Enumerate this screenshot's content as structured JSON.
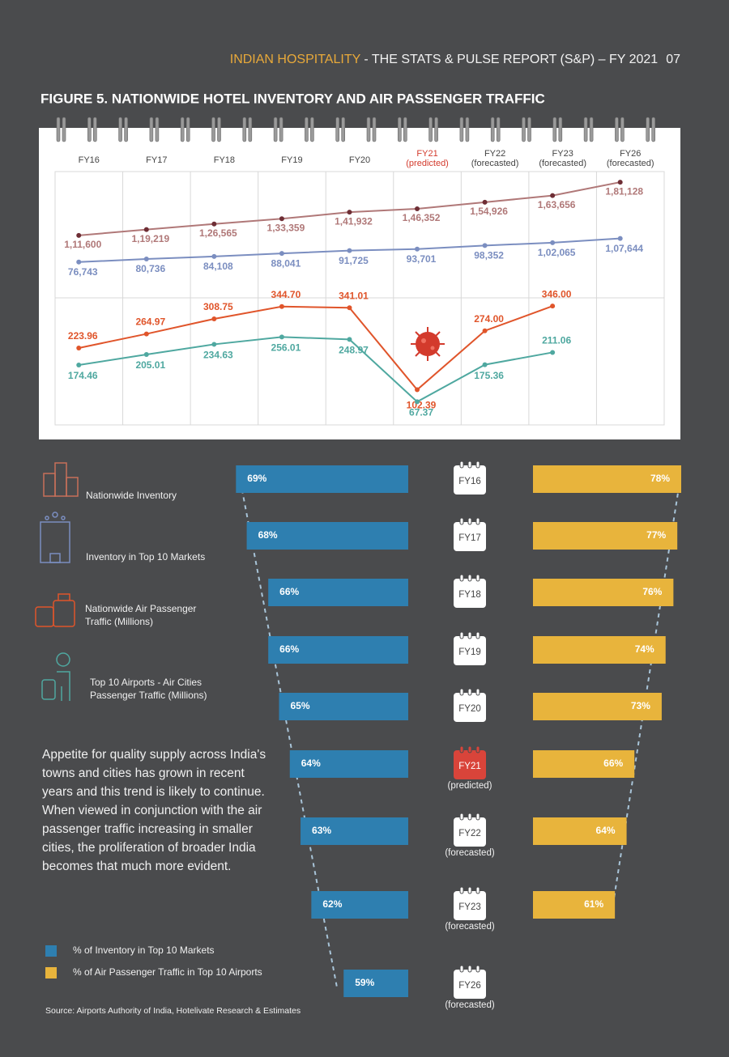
{
  "header": {
    "brand": "INDIAN HOSPITALITY",
    "report": " - THE STATS & PULSE REPORT (S&P) – FY 2021",
    "page": "07"
  },
  "figure_title": "FIGURE 5. NATIONWIDE HOTEL INVENTORY AND AIR PASSENGER TRAFFIC",
  "paragraph": "Appetite for quality supply across India's towns and cities has grown in recent years and this trend is likely to continue. When viewed in conjunction with the air passenger traffic increasing in smaller cities, the proliferation of broader India becomes that much more evident.",
  "source": "Source: Airports Authority of India, Hotelivate Research & Estimates",
  "chart_data": [
    {
      "type": "line",
      "categories": [
        "FY16",
        "FY17",
        "FY18",
        "FY19",
        "FY20",
        "FY21",
        "FY22",
        "FY23",
        "FY26"
      ],
      "category_notes": [
        null,
        null,
        null,
        null,
        null,
        "(predicted)",
        "(forecasted)",
        "(forecasted)",
        "(forecasted)"
      ],
      "ylim": [
        30000,
        195000
      ],
      "y2lim": [
        0,
        370
      ],
      "grid": true,
      "series": [
        {
          "name": "Nationwide Inventory",
          "color": "#b07878",
          "values": [
            111600,
            119219,
            126565,
            133359,
            141932,
            146352,
            154926,
            163656,
            181128
          ],
          "value_labels": [
            "1,11,600",
            "1,19,219",
            "1,26,565",
            "1,33,359",
            "1,41,932",
            "1,46,352",
            "1,54,926",
            "1,63,656",
            "1,81,128"
          ]
        },
        {
          "name": "Inventory in Top 10 Markets",
          "color": "#7b8ec0",
          "values": [
            76743,
            80736,
            84108,
            88041,
            91725,
            93701,
            98352,
            102065,
            107644
          ],
          "value_labels": [
            "76,743",
            "80,736",
            "84,108",
            "88,041",
            "91,725",
            "93,701",
            "98,352",
            "1,02,065",
            "1,07,644"
          ]
        },
        {
          "name": "Nationwide Air Passenger Traffic (Millions)",
          "color": "#e0552b",
          "axis": "y2",
          "values": [
            223.96,
            264.97,
            308.75,
            344.7,
            341.01,
            102.39,
            274.0,
            346.0,
            null
          ],
          "value_labels": [
            "223.96",
            "264.97",
            "308.75",
            "344.70",
            "341.01",
            "102.39",
            "274.00",
            "346.00",
            null
          ]
        },
        {
          "name": "Top 10 Airports - Air Cities Passenger Traffic (Millions)",
          "color": "#4fa8a0",
          "axis": "y2",
          "values": [
            174.46,
            205.01,
            234.63,
            256.01,
            248.97,
            67.37,
            175.36,
            211.06,
            null
          ],
          "value_labels": [
            "174.46",
            "205.01",
            "234.63",
            "256.01",
            "248.97",
            "67.37",
            "175.36",
            "211.06",
            null
          ]
        }
      ]
    },
    {
      "type": "bar",
      "orientation": "horizontal",
      "categories": [
        "FY16",
        "FY17",
        "FY18",
        "FY19",
        "FY20",
        "FY21",
        "FY22",
        "FY23",
        "FY26"
      ],
      "category_notes": [
        null,
        null,
        null,
        null,
        null,
        "(predicted)",
        "(forecasted)",
        "(forecasted)",
        "(forecasted)"
      ],
      "xlim": [
        53,
        70
      ],
      "x2lim": [
        40,
        78
      ],
      "series": [
        {
          "name": "% of Inventory in Top 10 Markets",
          "color": "#2e7fb0",
          "values": [
            69,
            68,
            66,
            66,
            65,
            64,
            63,
            62,
            59
          ],
          "value_labels": [
            "69%",
            "68%",
            "66%",
            "66%",
            "65%",
            "64%",
            "63%",
            "62%",
            "59%"
          ]
        },
        {
          "name": "% of Air Passenger Traffic in Top 10 Airports",
          "color": "#e8b43c",
          "axis": "x2",
          "values": [
            78,
            77,
            76,
            74,
            73,
            66,
            64,
            61,
            null
          ],
          "value_labels": [
            "78%",
            "77%",
            "76%",
            "74%",
            "73%",
            "66%",
            "64%",
            "61%",
            null
          ]
        }
      ]
    }
  ]
}
